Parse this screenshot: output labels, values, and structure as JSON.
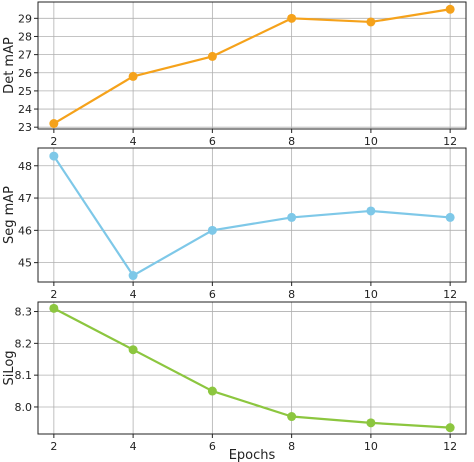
{
  "chart_data": [
    {
      "type": "line",
      "x": [
        2,
        4,
        6,
        8,
        10,
        12
      ],
      "values": [
        23.2,
        25.8,
        26.9,
        29.0,
        28.8,
        29.5
      ],
      "ylabel": "Det mAP",
      "xlabel": "",
      "xticks": [
        2,
        4,
        6,
        8,
        10,
        12
      ],
      "yticks": [
        23,
        24,
        25,
        26,
        27,
        28,
        29
      ],
      "ylim": [
        22.9,
        29.9
      ],
      "xlim": [
        1.6,
        12.4
      ],
      "grid": true,
      "color": "#f5a21b"
    },
    {
      "type": "line",
      "x": [
        2,
        4,
        6,
        8,
        10,
        12
      ],
      "values": [
        48.3,
        44.6,
        46.0,
        46.4,
        46.6,
        46.4
      ],
      "ylabel": "Seg mAP",
      "xlabel": "",
      "xticks": [
        2,
        4,
        6,
        8,
        10,
        12
      ],
      "yticks": [
        45,
        46,
        47,
        48
      ],
      "ylim": [
        44.4,
        48.55
      ],
      "xlim": [
        1.6,
        12.4
      ],
      "grid": true,
      "color": "#7ec8e8"
    },
    {
      "type": "line",
      "x": [
        2,
        4,
        6,
        8,
        10,
        12
      ],
      "values": [
        8.31,
        8.18,
        8.05,
        7.97,
        7.95,
        7.935
      ],
      "ylabel": "SiLog",
      "xlabel": "Epochs",
      "xticks": [
        2,
        4,
        6,
        8,
        10,
        12
      ],
      "yticks": [
        "8.0",
        "8.1",
        "8.2",
        "8.3"
      ],
      "ylim": [
        7.915,
        8.33
      ],
      "xlim": [
        1.6,
        12.4
      ],
      "grid": true,
      "color": "#8cc63f"
    }
  ]
}
